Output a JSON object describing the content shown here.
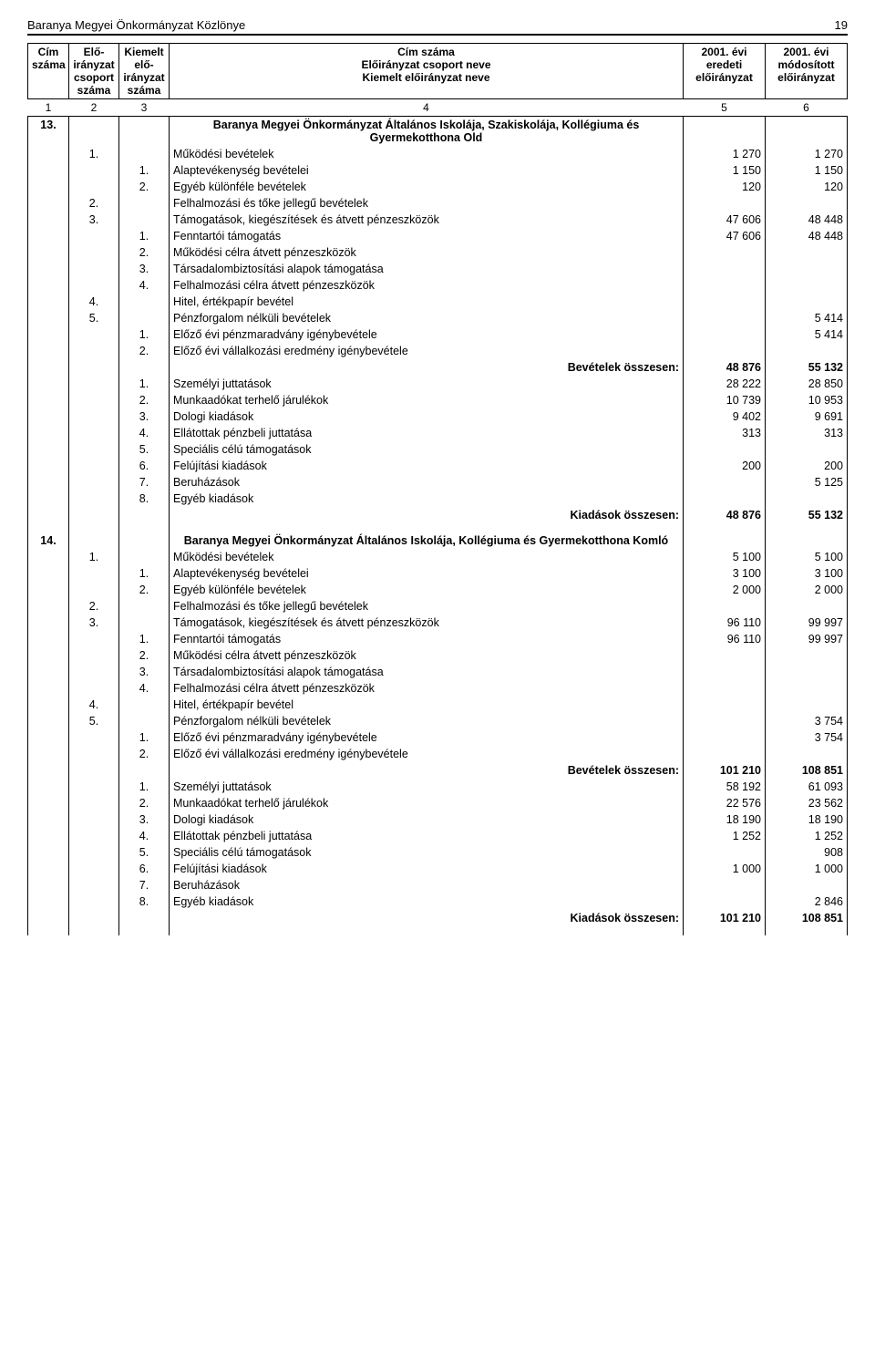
{
  "header": {
    "title": "Baranya Megyei Önkormányzat Közlönye",
    "page": "19"
  },
  "tableHeader": {
    "cim": "Cím száma",
    "csoport": "Elő-irányzat csoport száma",
    "kiemelt": "Kiemelt elő-irányzat száma",
    "nameLine1": "Cím száma",
    "nameLine2": "Előirányzat csoport neve",
    "nameLine3": "Kiemelt előirányzat neve",
    "col5a": "2001. évi",
    "col5b": "eredeti",
    "col5c": "előirányzat",
    "col6a": "2001. évi",
    "col6b": "módosított",
    "col6c": "előirányzat",
    "idx": [
      "1",
      "2",
      "3",
      "4",
      "5",
      "6"
    ]
  },
  "sections": [
    {
      "cim": "13.",
      "title": "Baranya Megyei Önkormányzat Általános Iskolája, Szakiskolája, Kollégiuma és Gyermekotthona Old",
      "rows": [
        {
          "csop": "1.",
          "kiem": "",
          "name": "Működési bevételek",
          "v1": "1 270",
          "v2": "1 270"
        },
        {
          "csop": "",
          "kiem": "1.",
          "name": "Alaptevékenység bevételei",
          "v1": "1 150",
          "v2": "1 150"
        },
        {
          "csop": "",
          "kiem": "2.",
          "name": "Egyéb különféle bevételek",
          "v1": "120",
          "v2": "120"
        },
        {
          "csop": "2.",
          "kiem": "",
          "name": "Felhalmozási és tőke jellegű bevételek",
          "v1": "",
          "v2": ""
        },
        {
          "csop": "3.",
          "kiem": "",
          "name": "Támogatások, kiegészítések és átvett pénzeszközök",
          "v1": "47 606",
          "v2": "48 448"
        },
        {
          "csop": "",
          "kiem": "1.",
          "name": "Fenntartói támogatás",
          "v1": "47 606",
          "v2": "48 448"
        },
        {
          "csop": "",
          "kiem": "2.",
          "name": "Működési célra átvett pénzeszközök",
          "v1": "",
          "v2": ""
        },
        {
          "csop": "",
          "kiem": "3.",
          "name": "Társadalombiztosítási alapok támogatása",
          "v1": "",
          "v2": ""
        },
        {
          "csop": "",
          "kiem": "4.",
          "name": "Felhalmozási célra átvett pénzeszközök",
          "v1": "",
          "v2": ""
        },
        {
          "csop": "4.",
          "kiem": "",
          "name": "Hitel, értékpapír bevétel",
          "v1": "",
          "v2": ""
        },
        {
          "csop": "5.",
          "kiem": "",
          "name": "Pénzforgalom nélküli bevételek",
          "v1": "",
          "v2": "5 414"
        },
        {
          "csop": "",
          "kiem": "1.",
          "name": "Előző évi pénzmaradvány igénybevétele",
          "v1": "",
          "v2": "5 414"
        },
        {
          "csop": "",
          "kiem": "2.",
          "name": "Előző évi vállalkozási eredmény igénybevétele",
          "v1": "",
          "v2": ""
        },
        {
          "total": true,
          "name": "Bevételek összesen:",
          "v1": "48 876",
          "v2": "55 132"
        },
        {
          "csop": "",
          "kiem": "1.",
          "name": "Személyi juttatások",
          "v1": "28 222",
          "v2": "28 850"
        },
        {
          "csop": "",
          "kiem": "2.",
          "name": "Munkaadókat terhelő járulékok",
          "v1": "10 739",
          "v2": "10 953"
        },
        {
          "csop": "",
          "kiem": "3.",
          "name": "Dologi kiadások",
          "v1": "9 402",
          "v2": "9 691"
        },
        {
          "csop": "",
          "kiem": "4.",
          "name": "Ellátottak pénzbeli juttatása",
          "v1": "313",
          "v2": "313"
        },
        {
          "csop": "",
          "kiem": "5.",
          "name": "Speciális célú támogatások",
          "v1": "",
          "v2": ""
        },
        {
          "csop": "",
          "kiem": "6.",
          "name": "Felújítási kiadások",
          "v1": "200",
          "v2": "200"
        },
        {
          "csop": "",
          "kiem": "7.",
          "name": "Beruházások",
          "v1": "",
          "v2": "5 125"
        },
        {
          "csop": "",
          "kiem": "8.",
          "name": "Egyéb kiadások",
          "v1": "",
          "v2": ""
        },
        {
          "total": true,
          "name": "Kiadások összesen:",
          "v1": "48 876",
          "v2": "55 132"
        }
      ]
    },
    {
      "cim": "14.",
      "title": "Baranya Megyei Önkormányzat Általános Iskolája, Kollégiuma és Gyermekotthona Komló",
      "rows": [
        {
          "csop": "1.",
          "kiem": "",
          "name": "Működési bevételek",
          "v1": "5 100",
          "v2": "5 100"
        },
        {
          "csop": "",
          "kiem": "1.",
          "name": "Alaptevékenység bevételei",
          "v1": "3 100",
          "v2": "3 100"
        },
        {
          "csop": "",
          "kiem": "2.",
          "name": "Egyéb különféle bevételek",
          "v1": "2 000",
          "v2": "2 000"
        },
        {
          "csop": "2.",
          "kiem": "",
          "name": "Felhalmozási és tőke jellegű bevételek",
          "v1": "",
          "v2": ""
        },
        {
          "csop": "3.",
          "kiem": "",
          "name": "Támogatások, kiegészítések és átvett pénzeszközök",
          "v1": "96 110",
          "v2": "99 997"
        },
        {
          "csop": "",
          "kiem": "1.",
          "name": "Fenntartói támogatás",
          "v1": "96 110",
          "v2": "99 997"
        },
        {
          "csop": "",
          "kiem": "2.",
          "name": "Működési célra átvett pénzeszközök",
          "v1": "",
          "v2": ""
        },
        {
          "csop": "",
          "kiem": "3.",
          "name": "Társadalombiztosítási alapok támogatása",
          "v1": "",
          "v2": ""
        },
        {
          "csop": "",
          "kiem": "4.",
          "name": "Felhalmozási célra átvett pénzeszközök",
          "v1": "",
          "v2": ""
        },
        {
          "csop": "4.",
          "kiem": "",
          "name": "Hitel, értékpapír bevétel",
          "v1": "",
          "v2": ""
        },
        {
          "csop": "5.",
          "kiem": "",
          "name": "Pénzforgalom nélküli bevételek",
          "v1": "",
          "v2": "3 754"
        },
        {
          "csop": "",
          "kiem": "1.",
          "name": "Előző évi pénzmaradvány igénybevétele",
          "v1": "",
          "v2": "3 754"
        },
        {
          "csop": "",
          "kiem": "2.",
          "name": "Előző évi vállalkozási eredmény igénybevétele",
          "v1": "",
          "v2": ""
        },
        {
          "total": true,
          "name": "Bevételek összesen:",
          "v1": "101 210",
          "v2": "108 851"
        },
        {
          "csop": "",
          "kiem": "1.",
          "name": "Személyi juttatások",
          "v1": "58 192",
          "v2": "61 093"
        },
        {
          "csop": "",
          "kiem": "2.",
          "name": "Munkaadókat terhelő járulékok",
          "v1": "22 576",
          "v2": "23 562"
        },
        {
          "csop": "",
          "kiem": "3.",
          "name": "Dologi kiadások",
          "v1": "18 190",
          "v2": "18 190"
        },
        {
          "csop": "",
          "kiem": "4.",
          "name": "Ellátottak pénzbeli juttatása",
          "v1": "1 252",
          "v2": "1 252"
        },
        {
          "csop": "",
          "kiem": "5.",
          "name": "Speciális célú támogatások",
          "v1": "",
          "v2": "908"
        },
        {
          "csop": "",
          "kiem": "6.",
          "name": "Felújítási kiadások",
          "v1": "1 000",
          "v2": "1 000"
        },
        {
          "csop": "",
          "kiem": "7.",
          "name": "Beruházások",
          "v1": "",
          "v2": ""
        },
        {
          "csop": "",
          "kiem": "8.",
          "name": "Egyéb kiadások",
          "v1": "",
          "v2": "2 846"
        },
        {
          "total": true,
          "name": "Kiadások összesen:",
          "v1": "101 210",
          "v2": "108 851"
        }
      ]
    }
  ]
}
